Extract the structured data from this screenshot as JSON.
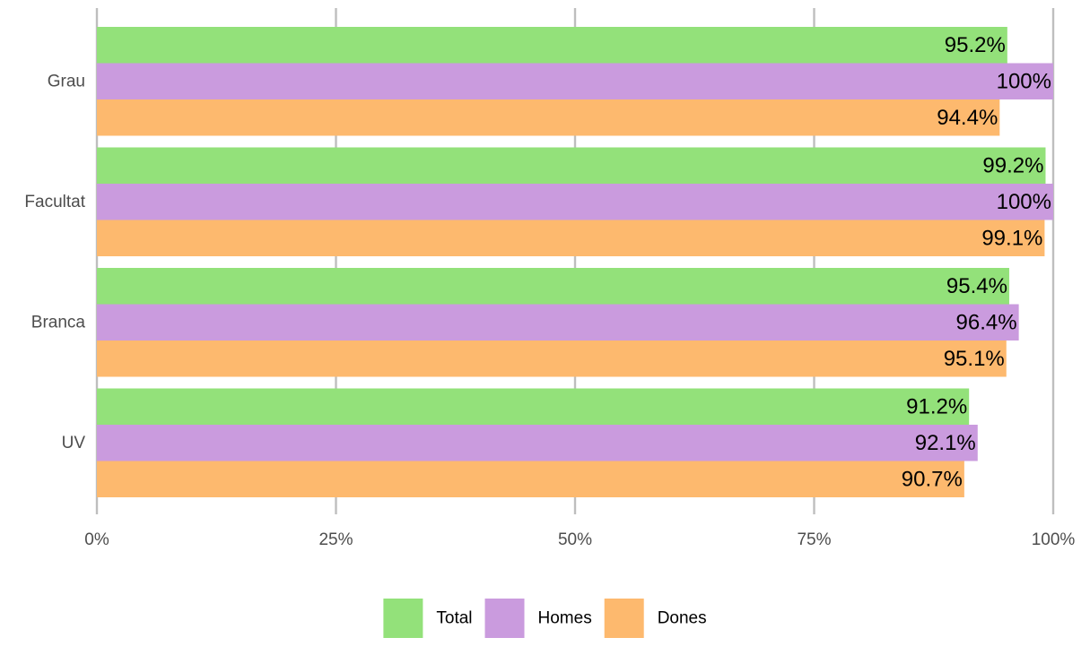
{
  "chart_data": {
    "type": "bar",
    "orientation": "horizontal",
    "categories": [
      "Grau",
      "Facultat",
      "Branca",
      "UV"
    ],
    "series": [
      {
        "name": "Total",
        "color": "#93e17a",
        "values": [
          95.2,
          99.2,
          95.4,
          91.2
        ],
        "labels": [
          "95.2%",
          "99.2%",
          "95.4%",
          "91.2%"
        ]
      },
      {
        "name": "Homes",
        "color": "#ca9bde",
        "values": [
          100,
          100,
          96.4,
          92.1
        ],
        "labels": [
          "100%",
          "100%",
          "96.4%",
          "92.1%"
        ]
      },
      {
        "name": "Dones",
        "color": "#fdb96e",
        "values": [
          94.4,
          99.1,
          95.1,
          90.7
        ],
        "labels": [
          "94.4%",
          "99.1%",
          "95.1%",
          "90.7%"
        ]
      }
    ],
    "xlim": [
      0,
      100
    ],
    "xticks": [
      0,
      25,
      50,
      75,
      100
    ],
    "xtick_labels": [
      "0%",
      "25%",
      "50%",
      "75%",
      "100%"
    ],
    "grid": "vertical-major",
    "grid_color": "#bebebe",
    "legend_position": "bottom",
    "title": "",
    "xlabel": "",
    "ylabel": ""
  }
}
